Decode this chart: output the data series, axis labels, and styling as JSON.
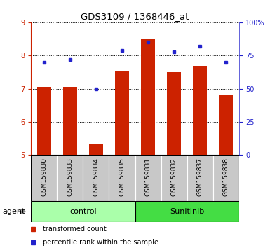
{
  "title": "GDS3109 / 1368446_at",
  "samples": [
    "GSM159830",
    "GSM159833",
    "GSM159834",
    "GSM159835",
    "GSM159831",
    "GSM159832",
    "GSM159837",
    "GSM159838"
  ],
  "groups": [
    "control",
    "control",
    "control",
    "control",
    "Sunitinib",
    "Sunitinib",
    "Sunitinib",
    "Sunitinib"
  ],
  "bar_values": [
    7.05,
    7.05,
    5.35,
    7.52,
    8.52,
    7.5,
    7.68,
    6.8
  ],
  "dot_values": [
    70,
    72,
    50,
    79,
    85,
    78,
    82,
    70
  ],
  "bar_color": "#cc2200",
  "dot_color": "#2222cc",
  "ylim_left": [
    5,
    9
  ],
  "ylim_right": [
    0,
    100
  ],
  "yticks_left": [
    5,
    6,
    7,
    8,
    9
  ],
  "yticks_right": [
    0,
    25,
    50,
    75,
    100
  ],
  "yticklabels_right": [
    "0",
    "25",
    "50",
    "75",
    "100%"
  ],
  "control_color": "#aaffaa",
  "sunitinib_color": "#44dd44",
  "bar_bottom": 5,
  "legend_bar_label": "transformed count",
  "legend_dot_label": "percentile rank within the sample",
  "agent_label": "agent",
  "sample_bg_color": "#c8c8c8",
  "bar_width": 0.55
}
